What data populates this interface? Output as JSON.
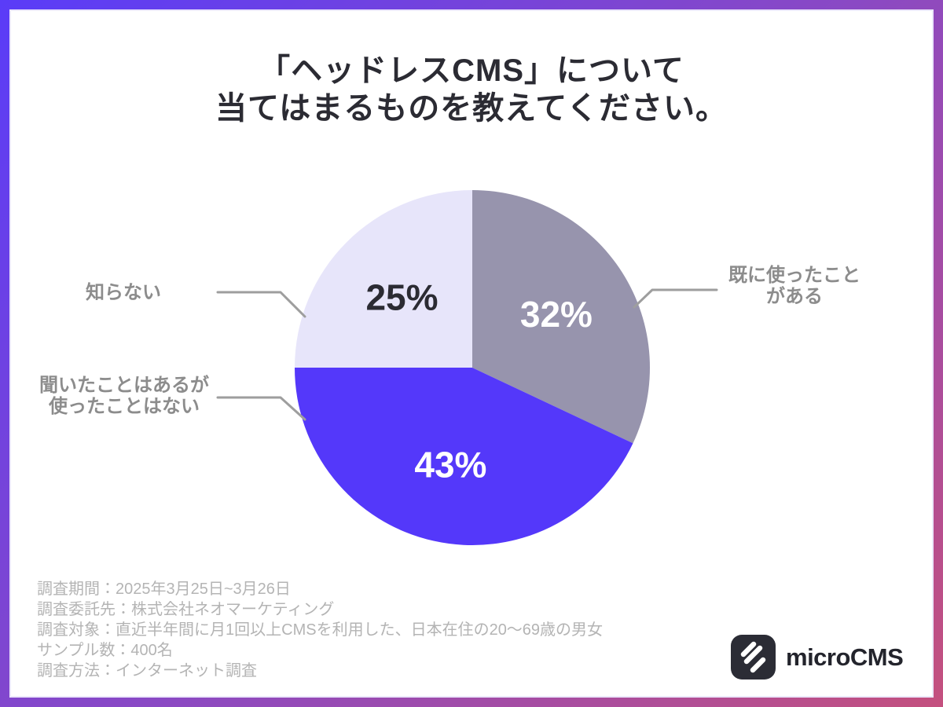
{
  "title": {
    "line1": "「ヘッドレスCMS」について",
    "line2": "当てはまるものを教えてください。"
  },
  "chart_data": {
    "type": "pie",
    "title": "「ヘッドレスCMS」について当てはまるものを教えてください。",
    "labels": [
      "既に使ったことがある",
      "聞いたことはあるが使ったことはない",
      "知らない"
    ],
    "values": [
      32,
      43,
      25
    ],
    "unit": "%",
    "colors": [
      "#9794AD",
      "#5438FA",
      "#E7E5FA"
    ],
    "value_label_colors": [
      "#ffffff",
      "#ffffff",
      "#2B2B33"
    ],
    "start_position": "top",
    "direction": "clockwise",
    "legend_position": "external-callouts"
  },
  "callouts": {
    "used": {
      "lines": [
        "既に使ったこと",
        "がある"
      ]
    },
    "heard": {
      "lines": [
        "聞いたことはあるが",
        "使ったことはない"
      ]
    },
    "unknown": {
      "lines": [
        "知らない"
      ]
    }
  },
  "footer": {
    "lines": [
      "調査期間：2025年3月25日~3月26日",
      "調査委託先：株式会社ネオマーケティング",
      "調査対象：直近半年間に月1回以上CMSを利用した、日本在住の20〜69歳の男女",
      "サンプル数：400名",
      "調査方法：インターネット調査"
    ]
  },
  "logo": {
    "text": "microCMS"
  },
  "colors": {
    "border_gradient_start": "#5a3cf8",
    "border_gradient_mid": "#8a49c4",
    "border_gradient_end": "#c4507e",
    "title_text": "#2b2b33",
    "callout_text": "#8c8c8c",
    "leader_line": "#9e9e9e",
    "footer_text": "#b4b4b4",
    "logo_box": "#2b2c35"
  }
}
